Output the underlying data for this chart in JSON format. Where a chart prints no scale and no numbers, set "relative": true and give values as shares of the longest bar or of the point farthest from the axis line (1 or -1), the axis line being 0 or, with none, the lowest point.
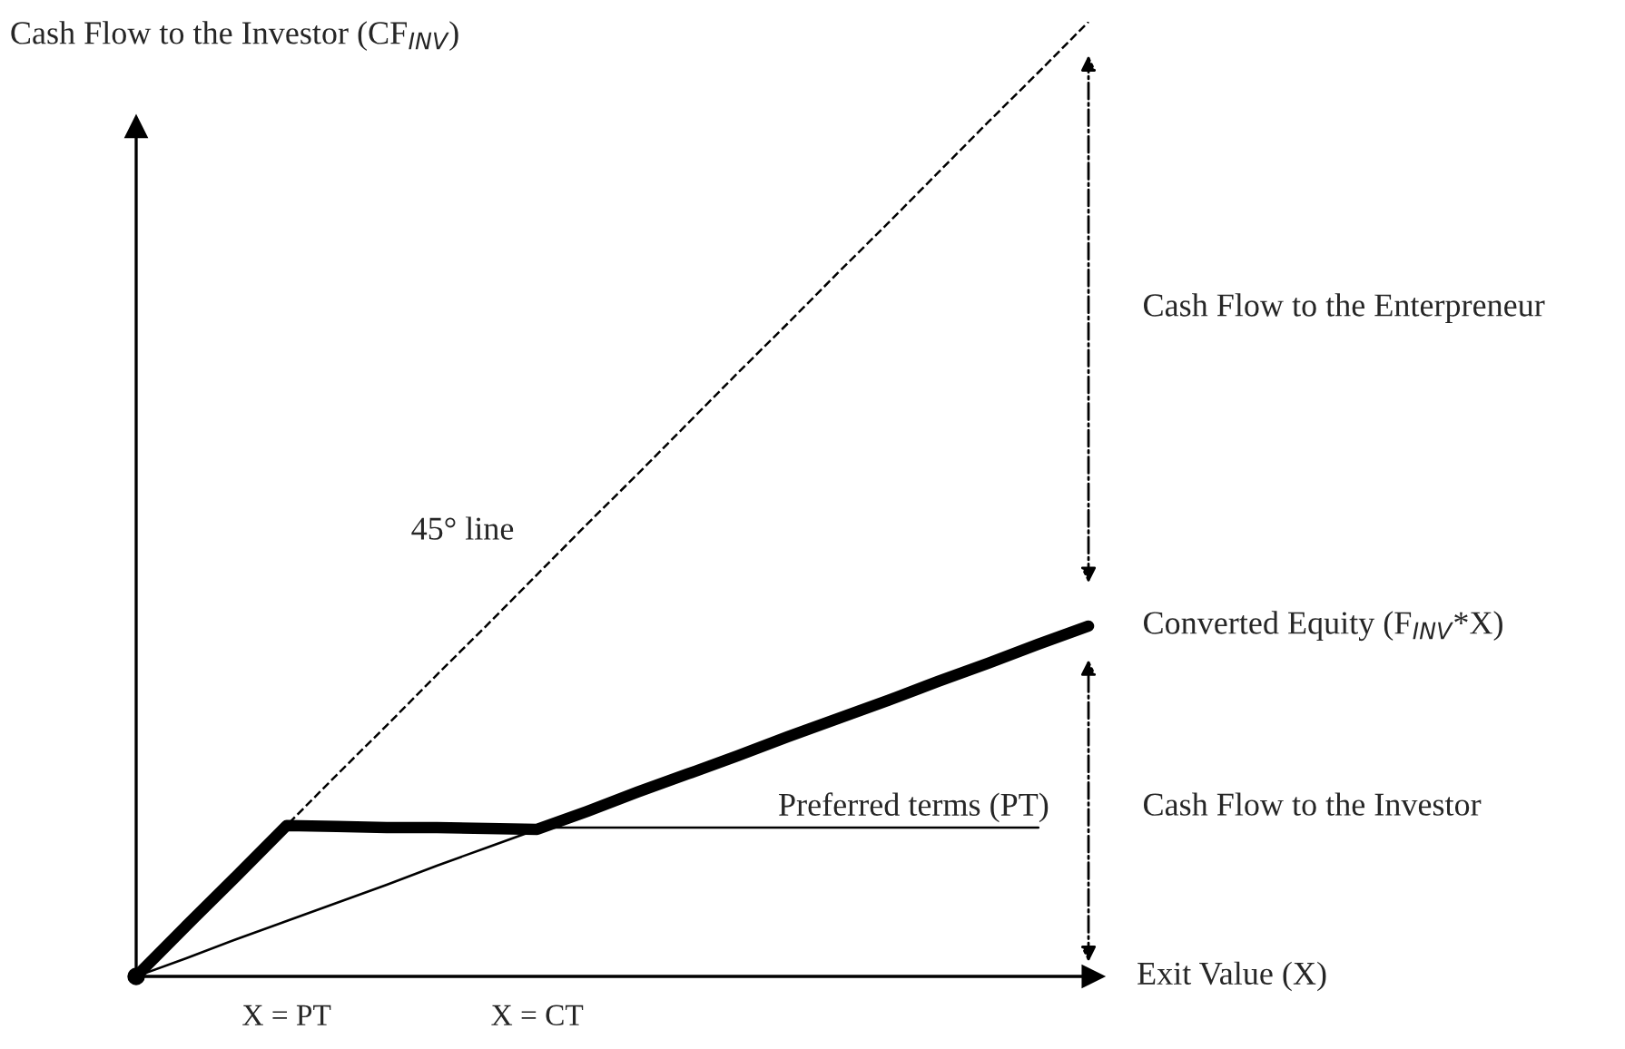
{
  "chart_data": {
    "type": "line",
    "relative": true,
    "ylabel": "Cash Flow to the Investor (CF$_{INV}$)",
    "xlabel": "Exit Value (X)",
    "categories": [
      null,
      null,
      null,
      "X = PT",
      null,
      null,
      null,
      null,
      "X = CT",
      null,
      null,
      null,
      null,
      null,
      null,
      null,
      null,
      null,
      null,
      null
    ],
    "tick_labels": "x",
    "series": [
      {
        "color": "#000000",
        "line_style": "dashed",
        "values": [
          0,
          0.053,
          0.105,
          0.158,
          0.211,
          0.263,
          0.316,
          0.368,
          0.421,
          0.474,
          0.526,
          0.579,
          0.632,
          0.684,
          0.737,
          0.789,
          0.842,
          0.895,
          0.947,
          1.0
        ]
      },
      {
        "color": "#000000",
        "line_style": "solid",
        "values": [
          0,
          0.053,
          0.105,
          0.158,
          0.157,
          0.156,
          0.156,
          0.155,
          0.154,
          0.173,
          0.193,
          0.212,
          0.231,
          0.251,
          0.27,
          0.289,
          0.309,
          0.328,
          0.348,
          0.367
        ]
      },
      {
        "color": "#000000",
        "line_style": "solid",
        "values": [
          0,
          0.019,
          0.039,
          0.058,
          0.077,
          0.096,
          0.116,
          0.135,
          0.154,
          null,
          null,
          null,
          null,
          null,
          null,
          null,
          null,
          null,
          null,
          null
        ]
      },
      {
        "color": "#000000",
        "line_style": "solid",
        "values": [
          null,
          null,
          null,
          0.156,
          0.156,
          0.156,
          0.156,
          0.156,
          0.156,
          0.156,
          0.156,
          0.156,
          0.156,
          0.156,
          0.156,
          0.156,
          0.156,
          0.156,
          0.156,
          null
        ]
      }
    ],
    "annotations": [
      "45° line",
      "Preferred terms (PT)",
      "Cash Flow to the Enterpreneur",
      "Converted Equity (F$_{INV}$*X)",
      "Cash Flow to the Investor"
    ],
    "legend": false,
    "grid": false
  }
}
